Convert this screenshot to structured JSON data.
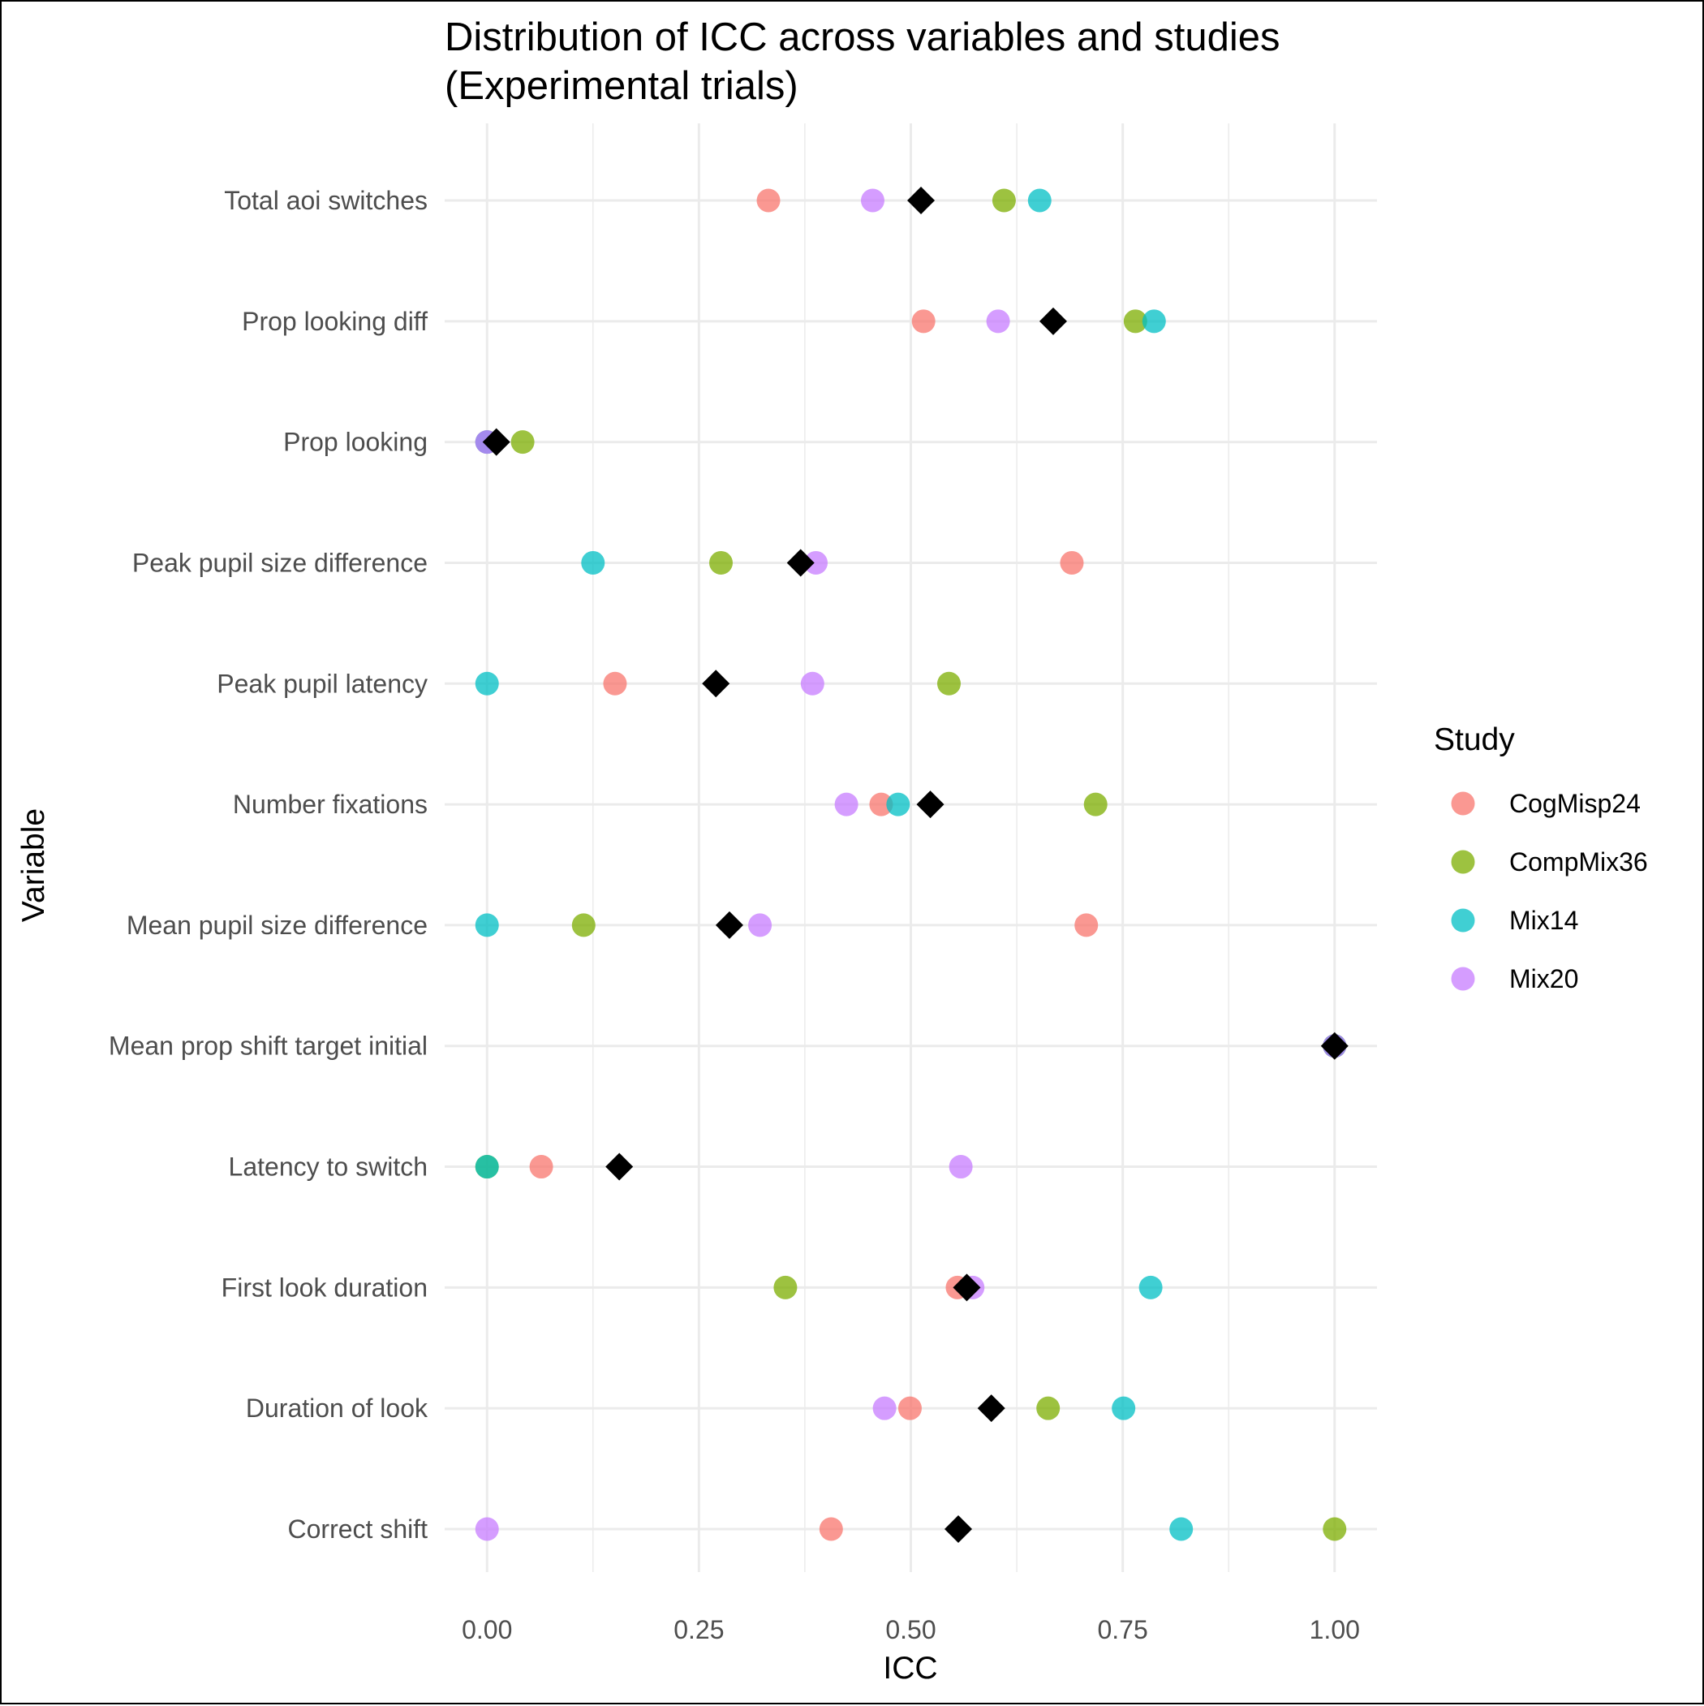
{
  "chart_data": {
    "type": "scatter",
    "title": [
      "Distribution of ICC across variables and studies",
      "(Experimental trials)"
    ],
    "xlabel": "ICC",
    "ylabel": "Variable",
    "xlim": [
      -0.05,
      1.05
    ],
    "x_ticks": [
      0.0,
      0.25,
      0.5,
      0.75,
      1.0
    ],
    "x_tick_labels": [
      "0.00",
      "0.25",
      "0.50",
      "0.75",
      "1.00"
    ],
    "grid": true,
    "legend": {
      "title": "Study",
      "position": "right"
    },
    "categories": [
      "Total aoi switches",
      "Prop looking diff",
      "Prop looking",
      "Peak pupil size difference",
      "Peak pupil latency",
      "Number fixations",
      "Mean pupil size difference",
      "Mean prop shift target initial",
      "Latency to switch",
      "First look duration",
      "Duration of look",
      "Correct shift"
    ],
    "series": [
      {
        "name": "CogMisp24",
        "color": "#F8766D",
        "values": [
          0.332,
          0.515,
          0.0,
          0.69,
          0.151,
          0.465,
          0.707,
          1.0,
          0.064,
          0.555,
          0.499,
          0.406
        ]
      },
      {
        "name": "CompMix36",
        "color": "#7CAE00",
        "values": [
          0.61,
          0.765,
          0.042,
          0.276,
          0.545,
          0.718,
          0.114,
          1.0,
          0.0,
          0.352,
          0.662,
          1.0
        ]
      },
      {
        "name": "Mix14",
        "color": "#00BFC4",
        "values": [
          0.652,
          0.787,
          0.0,
          0.125,
          0.0,
          0.485,
          0.0,
          1.0,
          0.0,
          0.783,
          0.751,
          0.819
        ]
      },
      {
        "name": "Mix20",
        "color": "#C77CFF",
        "values": [
          0.455,
          0.603,
          0.0,
          0.388,
          0.384,
          0.424,
          0.322,
          1.0,
          0.559,
          0.573,
          0.469,
          0.0
        ]
      }
    ],
    "mean": {
      "marker": "diamond",
      "color": "#000000",
      "values": [
        0.512,
        0.668,
        0.011,
        0.37,
        0.27,
        0.523,
        0.286,
        1.0,
        0.156,
        0.566,
        0.595,
        0.556
      ]
    }
  }
}
